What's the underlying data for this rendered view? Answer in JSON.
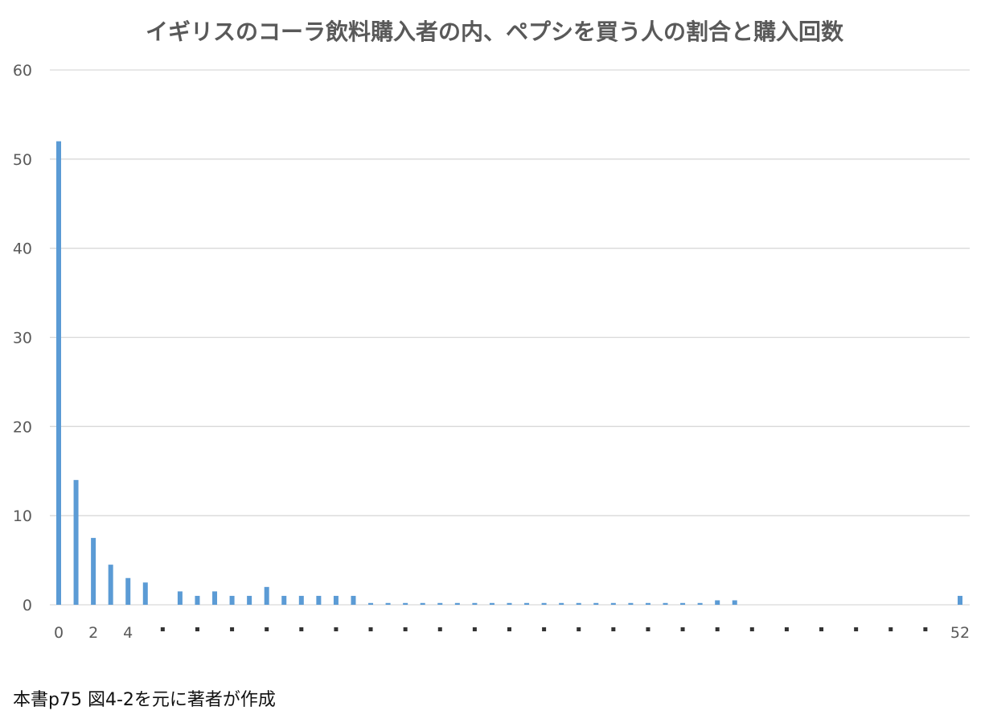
{
  "colors": {
    "bar": "#5b9bd5",
    "grid": "#d9d9d9",
    "axis_text": "#595959",
    "title": "#595959"
  },
  "footnote": "本書p75 図4-2を元に著者が作成",
  "chart_data": {
    "type": "bar",
    "title": "イギリスのコーラ飲料購入者の内、ペプシを買う人の割合と購入回数",
    "xlabel": "",
    "ylabel": "",
    "ylim": [
      0,
      60
    ],
    "y_ticks": [
      0,
      10,
      20,
      30,
      40,
      50,
      60
    ],
    "grid": true,
    "legend": "none",
    "x_tick_labels": [
      {
        "x": 0,
        "label": "0"
      },
      {
        "x": 2,
        "label": "2"
      },
      {
        "x": 4,
        "label": "4"
      },
      {
        "x": 52,
        "label": "52"
      }
    ],
    "x_dot_positions": [
      6,
      8,
      10,
      12,
      14,
      16,
      18,
      20,
      22,
      24,
      26,
      28,
      30,
      32,
      34,
      36,
      38,
      40,
      42,
      44,
      46,
      48,
      50
    ],
    "x_min": 0,
    "x_max": 52,
    "x": [
      0,
      1,
      2,
      3,
      4,
      5,
      6,
      7,
      8,
      9,
      10,
      11,
      12,
      13,
      14,
      15,
      16,
      17,
      18,
      19,
      20,
      21,
      22,
      23,
      24,
      25,
      26,
      27,
      28,
      29,
      30,
      31,
      32,
      33,
      34,
      35,
      36,
      37,
      38,
      39,
      40,
      41,
      42,
      43,
      44,
      45,
      46,
      47,
      48,
      49,
      50,
      51,
      52
    ],
    "values": [
      52,
      14,
      7.5,
      4.5,
      3,
      2.5,
      0,
      1.5,
      1,
      1.5,
      1,
      1,
      2,
      1,
      1,
      1,
      1,
      1,
      0.2,
      0.2,
      0.2,
      0.2,
      0.2,
      0.2,
      0.2,
      0.2,
      0.2,
      0.2,
      0.2,
      0.2,
      0.2,
      0.2,
      0.2,
      0.2,
      0.2,
      0.2,
      0.2,
      0.2,
      0.5,
      0.5,
      0,
      0,
      0,
      0,
      0,
      0,
      0,
      0,
      0,
      0,
      0,
      0,
      1
    ]
  }
}
